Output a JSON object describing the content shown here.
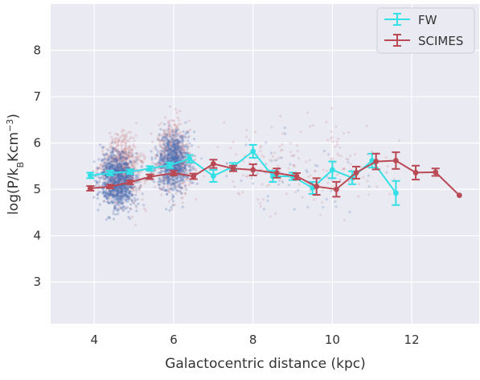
{
  "colors": {
    "background": "#eaeaf2",
    "grid": "#ffffff",
    "fw": "#33e0e6",
    "scimes": "#b94a55",
    "scatter_blue": "#4a6fb5",
    "scatter_red": "#c87a80"
  },
  "chart_data": {
    "type": "line",
    "xlabel": "Galactocentric distance (kpc)",
    "ylabel": "log(P/k_B K cm^-3)",
    "ylabel_parts": {
      "main": "log(P/k",
      "sub": "B",
      "mid": "Kcm",
      "sup": "−3",
      "end": ")"
    },
    "xlim": [
      2.9,
      13.7
    ],
    "ylim": [
      2.1,
      9.0
    ],
    "xticks": [
      4,
      6,
      8,
      10,
      12
    ],
    "yticks": [
      3,
      4,
      5,
      6,
      7,
      8
    ],
    "grid": true,
    "legend_position": "top-right",
    "series": [
      {
        "name": "FW",
        "color": "#33e0e6",
        "x": [
          3.9,
          4.4,
          4.9,
          5.4,
          5.9,
          6.4,
          7.0,
          7.5,
          8.0,
          8.5,
          9.0,
          9.5,
          10.0,
          10.5,
          11.0,
          11.6
        ],
        "y": [
          5.3,
          5.35,
          5.38,
          5.45,
          5.52,
          5.66,
          5.29,
          5.49,
          5.82,
          5.28,
          5.28,
          5.03,
          5.42,
          5.25,
          5.62,
          4.92
        ],
        "err": [
          0.06,
          0.05,
          0.05,
          0.05,
          0.06,
          0.08,
          0.13,
          0.08,
          0.14,
          0.12,
          0.08,
          0.13,
          0.18,
          0.14,
          0.15,
          0.26
        ]
      },
      {
        "name": "SCIMES",
        "color": "#b94a55",
        "x": [
          3.9,
          4.4,
          4.9,
          5.4,
          6.0,
          6.5,
          7.0,
          7.5,
          8.0,
          8.6,
          9.1,
          9.6,
          10.1,
          10.6,
          11.1,
          11.6,
          12.1,
          12.6,
          13.2
        ],
        "y": [
          5.02,
          5.06,
          5.15,
          5.27,
          5.35,
          5.28,
          5.55,
          5.45,
          5.42,
          5.35,
          5.28,
          5.06,
          5.0,
          5.36,
          5.6,
          5.62,
          5.36,
          5.37,
          4.87
        ],
        "err": [
          0.05,
          0.04,
          0.04,
          0.05,
          0.05,
          0.06,
          0.09,
          0.06,
          0.12,
          0.1,
          0.07,
          0.18,
          0.16,
          0.13,
          0.17,
          0.18,
          0.15,
          0.08,
          0.0
        ]
      }
    ]
  }
}
